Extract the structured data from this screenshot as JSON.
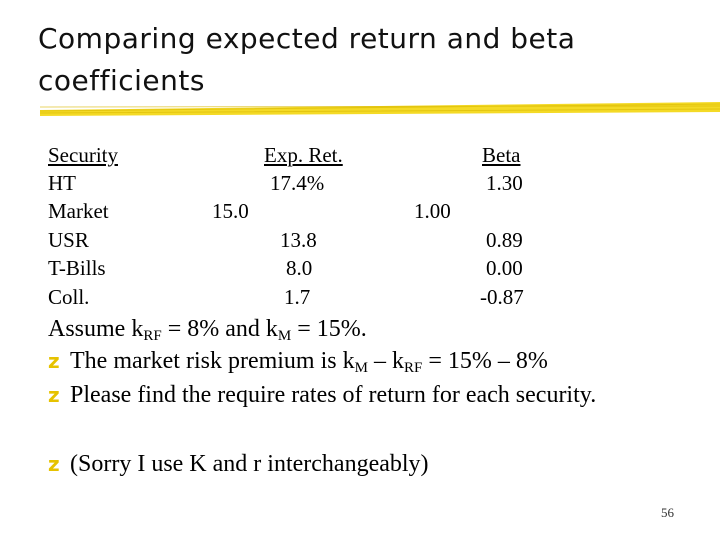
{
  "slide": {
    "title_line1": "Comparing expected return and beta",
    "title_line2": "coefficients",
    "page_number": "56",
    "accent_color": "#f2d300"
  },
  "table": {
    "headers": {
      "security": "Security",
      "exp_ret": "Exp. Ret.",
      "beta": "Beta"
    },
    "rows": [
      {
        "security": "HT",
        "exp_ret": "17.4%",
        "beta": "1.30"
      },
      {
        "security": "Market",
        "exp_ret": "15.0",
        "beta": "1.00"
      },
      {
        "security": "USR",
        "exp_ret": "13.8",
        "beta": "0.89"
      },
      {
        "security": "T-Bills",
        "exp_ret": "8.0",
        "beta": "0.00"
      },
      {
        "security": "Coll.",
        "exp_ret": "1.7",
        "beta": "-0.87"
      }
    ]
  },
  "assumption": {
    "prefix": "Assume k",
    "sub1": "RF",
    "mid": " = 8% and k",
    "sub2": "M",
    "suffix": " = 15%."
  },
  "bullets": {
    "b1": {
      "text": "The market risk premium is  k",
      "sub1": "M",
      "mid": " – k",
      "sub2": "RF",
      "suffix": " = 15% – 8%"
    },
    "b2": {
      "text": "Please find the require rates of return for each security."
    },
    "b3": {
      "text": "(Sorry I use K and r interchangeably)"
    }
  }
}
